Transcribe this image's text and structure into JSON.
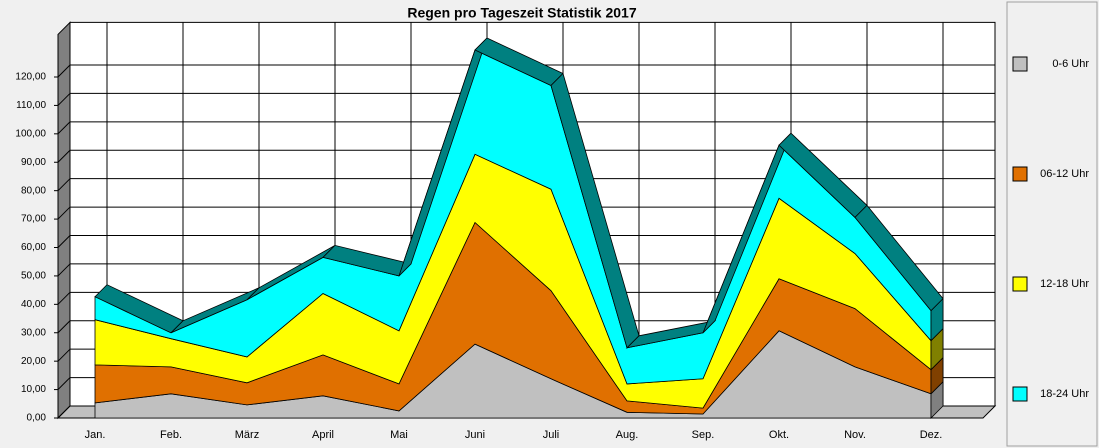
{
  "chart_data": {
    "type": "area3d",
    "title": "Regen pro Tageszeit Statistik 2017",
    "categories": [
      "Jan.",
      "Feb.",
      "März",
      "April",
      "Mai",
      "Juni",
      "Juli",
      "Aug.",
      "Sep.",
      "Okt.",
      "Nov.",
      "Dez."
    ],
    "stacked": true,
    "series": [
      {
        "name": "0-6 Uhr",
        "color": "#c0c0c0",
        "values": [
          5.3,
          8.5,
          4.6,
          7.8,
          2.5,
          26.0,
          13.8,
          2.0,
          1.4,
          30.7,
          18.0,
          8.5
        ]
      },
      {
        "name": "06-12 Uhr",
        "color": "#e07000",
        "values": [
          13.4,
          9.5,
          7.8,
          14.4,
          9.5,
          42.8,
          31.0,
          4.0,
          2.1,
          18.3,
          20.5,
          8.5
        ]
      },
      {
        "name": "12-18 Uhr",
        "color": "#ffff00",
        "values": [
          15.9,
          9.9,
          9.1,
          21.6,
          18.7,
          24.0,
          35.7,
          6.0,
          10.3,
          28.3,
          19.4,
          10.2
        ]
      },
      {
        "name": "18-24 Uhr",
        "color": "#00ffff",
        "values": [
          8.1,
          2.1,
          20.1,
          12.7,
          19.3,
          36.7,
          36.5,
          12.7,
          16.2,
          18.7,
          12.7,
          10.6
        ]
      }
    ],
    "ylim": [
      0,
      135
    ],
    "yticks": [
      {
        "value": 0,
        "label": "0,00"
      },
      {
        "value": 10,
        "label": "10,00"
      },
      {
        "value": 20,
        "label": "20,00"
      },
      {
        "value": 30,
        "label": "30,00"
      },
      {
        "value": 40,
        "label": "40,00"
      },
      {
        "value": 50,
        "label": "50,00"
      },
      {
        "value": 60,
        "label": "60,00"
      },
      {
        "value": 70,
        "label": "70,00"
      },
      {
        "value": 80,
        "label": "80,00"
      },
      {
        "value": 90,
        "label": "90,00"
      },
      {
        "value": 100,
        "label": "100,00"
      },
      {
        "value": 110,
        "label": "110,00"
      },
      {
        "value": 120,
        "label": "120,00"
      }
    ],
    "grid": true,
    "legend": "right"
  }
}
